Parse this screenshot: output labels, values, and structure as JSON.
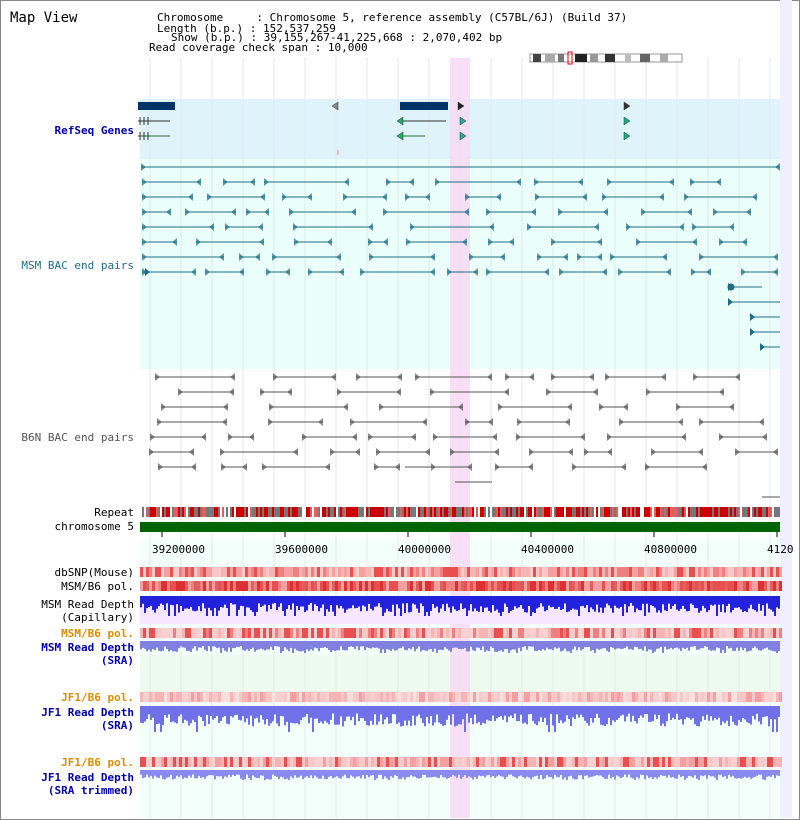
{
  "title": "Map View",
  "info": {
    "chromosome_label": "Chromosome",
    "chromosome_value": "Chromosome 5, reference assembly (C57BL/6J) (Build 37)",
    "length_label": "Length (b.p.)",
    "length_value": "152,537,259",
    "show_label": "Show (b.p.)",
    "show_value": "39,155,267-41,225,668 : 2,070,402 bp",
    "coverage_label": "Read coverage check span",
    "coverage_value": "10,000"
  },
  "tracks": {
    "refseq": "RefSeq Genes",
    "msm_bac": "MSM BAC end pairs",
    "b6n_bac": "B6N BAC end pairs",
    "repeat": "Repeat",
    "chromosome": "chromosome 5",
    "dbsnp": "dbSNP(Mouse)",
    "msm_b6_pol_1": "MSM/B6 pol.",
    "msm_read_depth_cap_1": "MSM Read Depth",
    "msm_read_depth_cap_2": "(Capillary)",
    "msm_b6_pol_2": "MSM/B6 pol.",
    "msm_read_depth_sra_1": "MSM Read Depth",
    "msm_read_depth_sra_2": "(SRA)",
    "jf1_b6_pol_1": "JF1/B6 pol.",
    "jf1_read_depth_sra_1": "JF1 Read Depth",
    "jf1_read_depth_sra_2": "(SRA)",
    "jf1_b6_pol_2": "JF1/B6 pol.",
    "jf1_read_depth_trim_1": "JF1 Read Depth",
    "jf1_read_depth_trim_2": "(SRA trimmed)"
  },
  "axis": {
    "ticks": [
      "39200000",
      "39600000",
      "40000000",
      "40400000",
      "40800000",
      "4120"
    ]
  },
  "colors": {
    "refseq_bg": "#dff3fb",
    "msm_bac_bg": "#eafffa",
    "track_bg": "#f3fffb",
    "highlight": "#f7d9f3",
    "gene": "#003366",
    "msm_bac": "#1e6d85",
    "b6n_bac": "#555555",
    "chromosome": "#006400",
    "blue_label": "#0000aa",
    "orange_label": "#e08c00",
    "teal_label": "#1e6d85"
  }
}
